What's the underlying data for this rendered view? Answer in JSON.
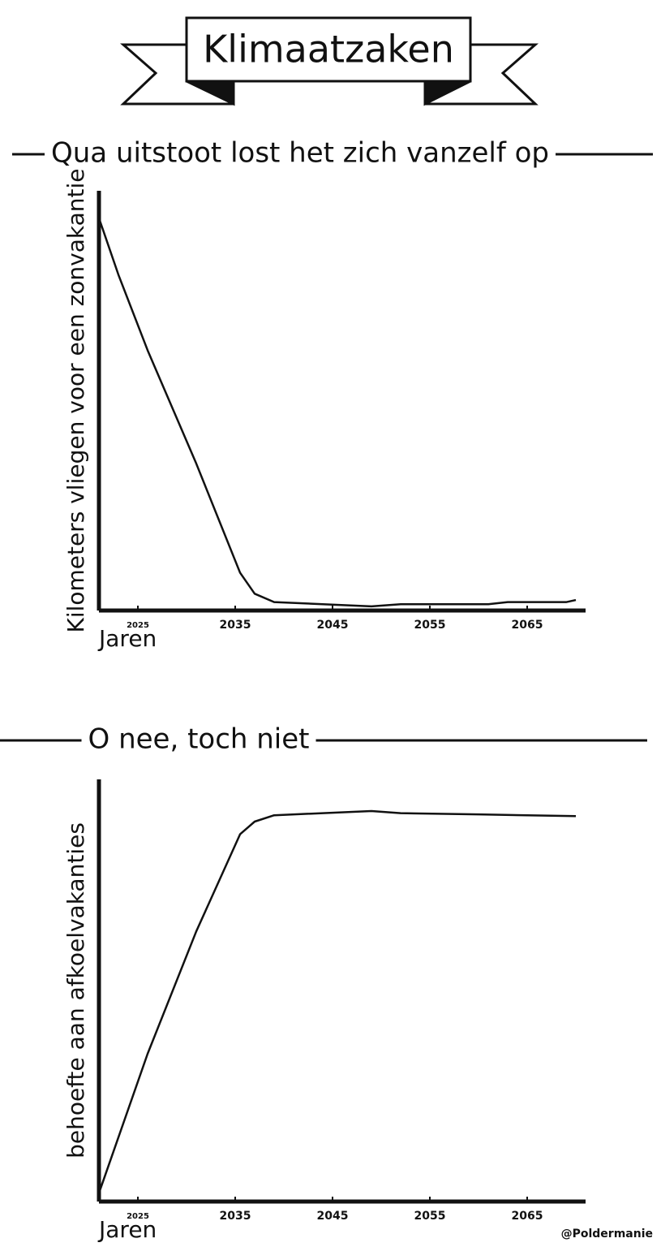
{
  "title": "Klimaatzaken",
  "credit": "@Poldermanie",
  "chart_data": [
    {
      "type": "line",
      "title": "Qua uitstoot lost het zich vanzelf op",
      "y_label": "Kilometers vliegen voor een zonvakantie",
      "x_label": "Jaren",
      "x": [
        2021,
        2023,
        2026,
        2031,
        2035.5,
        2037,
        2039,
        2044,
        2049,
        2052,
        2056,
        2061,
        2063,
        2069,
        2070
      ],
      "values": [
        93.5,
        80,
        62,
        35,
        9,
        4,
        2,
        1.5,
        1,
        1.5,
        1.5,
        1.5,
        2,
        2,
        2.5
      ],
      "color": "#111111",
      "xlim": [
        2021,
        2071
      ],
      "xticks": [
        2025,
        2035,
        2045,
        2055,
        2065
      ],
      "ylim": [
        0,
        100
      ]
    },
    {
      "type": "line",
      "title": "O nee, toch niet",
      "y_label": "behoefte aan afkoelvakanties",
      "x_label": "Jaren",
      "x": [
        2021,
        2026,
        2031,
        2035.5,
        2037,
        2039,
        2049,
        2052,
        2060,
        2070
      ],
      "values": [
        2,
        35,
        64,
        87,
        90,
        91.5,
        92.5,
        92,
        91.7,
        91.3
      ],
      "color": "#111111",
      "xlim": [
        2021,
        2071
      ],
      "xticks": [
        2025,
        2035,
        2045,
        2055,
        2065
      ],
      "ylim": [
        0,
        100
      ]
    }
  ]
}
